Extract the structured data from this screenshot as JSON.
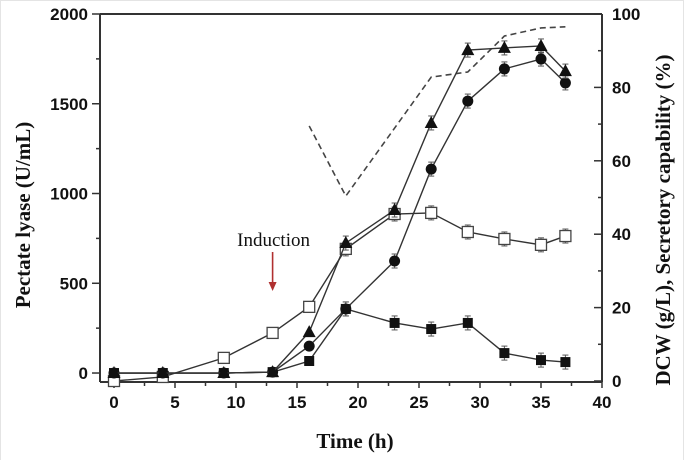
{
  "chart_data": {
    "type": "line",
    "title": "",
    "xlabel": "Time (h)",
    "ylabel": "Pectate lyase (U/mL)",
    "ylabel_right": "DCW (g/L), Secretory capability (%)",
    "xlim": [
      0,
      40
    ],
    "ylim": [
      -50,
      2000
    ],
    "ylim_right": [
      0,
      100
    ],
    "xticks": [
      0,
      5,
      10,
      15,
      20,
      25,
      30,
      35,
      40
    ],
    "yticks": [
      0,
      500,
      1000,
      1500,
      2000
    ],
    "yticks_right": [
      0,
      20,
      40,
      60,
      80,
      100
    ],
    "grid": false,
    "legend": "none",
    "series": [
      {
        "name": "Pectate lyase (triangle)",
        "marker": "triangle-filled",
        "axis": "left",
        "x": [
          0,
          4,
          9,
          13,
          16,
          19,
          23,
          26,
          29,
          32,
          35,
          37
        ],
        "values": [
          0,
          0,
          0,
          5,
          228,
          724,
          908,
          1393,
          1799,
          1811,
          1822,
          1682
        ]
      },
      {
        "name": "Pectate lyase (circle)",
        "marker": "circle-filled",
        "axis": "left",
        "x": [
          0,
          4,
          9,
          13,
          16,
          19,
          23,
          26,
          29,
          32,
          35,
          37
        ],
        "values": [
          0,
          0,
          0,
          5,
          150,
          357,
          624,
          1136,
          1515,
          1694,
          1749,
          1616
        ]
      },
      {
        "name": "Pectate lyase (square)",
        "marker": "square-filled",
        "axis": "left",
        "x": [
          0,
          4,
          9,
          13,
          16,
          19,
          23,
          26,
          29,
          32,
          35,
          37
        ],
        "values": [
          0,
          0,
          0,
          5,
          67,
          357,
          279,
          245,
          279,
          111,
          72,
          61
        ]
      },
      {
        "name": "DCW",
        "marker": "square-open",
        "axis": "right",
        "x": [
          0,
          4,
          9,
          13,
          16,
          19,
          23,
          26,
          29,
          32,
          35,
          37
        ],
        "values": [
          0,
          1.1,
          6.3,
          13.1,
          20.2,
          36,
          45.5,
          45.8,
          40.6,
          38.7,
          37.1,
          39.5
        ]
      },
      {
        "name": "Secretory capability",
        "marker": "none",
        "line": "dashed",
        "axis": "right",
        "x": [
          16,
          19,
          26,
          29,
          32,
          35,
          37
        ],
        "values": [
          69.5,
          50.4,
          82.8,
          84.2,
          94,
          96.2,
          96.5
        ]
      }
    ],
    "annotations": [
      {
        "text": "Induction",
        "x": 13,
        "arrow_color": "#b03030"
      }
    ]
  }
}
